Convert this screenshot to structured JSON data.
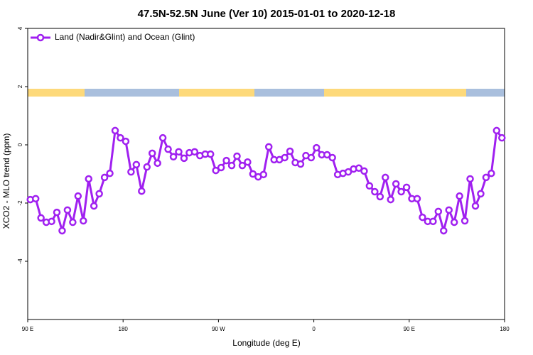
{
  "chart_data": {
    "type": "line",
    "title": "47.5N-52.5N June (Ver 10)   2015-01-01 to 2020-12-18",
    "x_label": "Longitude (deg E)",
    "y_label": "XCO2 - MLO trend (ppm)",
    "legend": "top left",
    "x": [
      92.5,
      97.5,
      102.5,
      107.5,
      112.5,
      117.5,
      122.5,
      127.5,
      132.5,
      137.5,
      142.5,
      147.5,
      152.5,
      157.5,
      162.5,
      167.5,
      172.5,
      177.5,
      182.5,
      187.5,
      192.5,
      197.5,
      202.5,
      207.5,
      212.5,
      217.5,
      222.5,
      227.5,
      232.5,
      237.5,
      242.5,
      247.5,
      252.5,
      257.5,
      262.5,
      267.5,
      272.5,
      277.5,
      282.5,
      287.5,
      292.5,
      297.5,
      302.5,
      307.5,
      312.5,
      317.5,
      322.5,
      327.5,
      332.5,
      337.5,
      342.5,
      347.5,
      352.5,
      357.5,
      362.5,
      367.5,
      372.5,
      377.5,
      382.5,
      387.5,
      392.5,
      397.5,
      402.5,
      407.5,
      412.5,
      417.5,
      422.5,
      427.5,
      432.5,
      437.5,
      442.5,
      447.5,
      452.5,
      457.5,
      462.5,
      467.5,
      472.5,
      477.5,
      482.5,
      487.5,
      492.5,
      497.5,
      502.5,
      507.5,
      512.5,
      517.5,
      522.5,
      527.5,
      532.5,
      537.5
    ],
    "series": [
      {
        "name": "Land (Nadir&Glint) and Ocean (Glint)",
        "color": "#a020f0",
        "values": [
          -1.88,
          -1.85,
          -2.51,
          -2.66,
          -2.63,
          -2.32,
          -2.95,
          -2.24,
          -2.66,
          -1.76,
          -2.61,
          -1.17,
          -2.1,
          -1.68,
          -1.12,
          -0.98,
          0.49,
          0.24,
          0.12,
          -0.93,
          -0.68,
          -1.59,
          -0.76,
          -0.29,
          -0.63,
          0.24,
          -0.15,
          -0.41,
          -0.24,
          -0.46,
          -0.27,
          -0.24,
          -0.37,
          -0.32,
          -0.32,
          -0.88,
          -0.78,
          -0.54,
          -0.71,
          -0.39,
          -0.71,
          -0.59,
          -1.0,
          -1.1,
          -1.02,
          -0.07,
          -0.51,
          -0.51,
          -0.44,
          -0.22,
          -0.61,
          -0.66,
          -0.37,
          -0.44,
          -0.1,
          -0.34,
          -0.34,
          -0.44,
          -1.02,
          -0.98,
          -0.93,
          -0.83,
          -0.8,
          -0.9,
          -1.41,
          -1.61,
          -1.78,
          -1.12,
          -1.88,
          -1.34,
          -1.61,
          -1.46,
          -1.85,
          -1.85,
          -2.49,
          -2.63,
          -2.63,
          -2.29,
          -2.95,
          -2.24,
          -2.66,
          -1.76,
          -2.61,
          -1.17,
          -2.1,
          -1.68,
          -1.12,
          -0.98,
          0.49,
          0.24
        ]
      }
    ],
    "xlim": [
      90,
      540
    ],
    "xticks": [
      {
        "value": 90,
        "label": "90 E"
      },
      180,
      {
        "value": 270,
        "label": "90 W"
      },
      {
        "value": 360,
        "label": "0"
      },
      {
        "value": 450,
        "label": "90 E"
      },
      {
        "value": 540,
        "label": "180"
      }
    ],
    "ylim": [
      -6,
      4
    ],
    "yticks": [
      -4,
      -2,
      0,
      2,
      4
    ]
  }
}
